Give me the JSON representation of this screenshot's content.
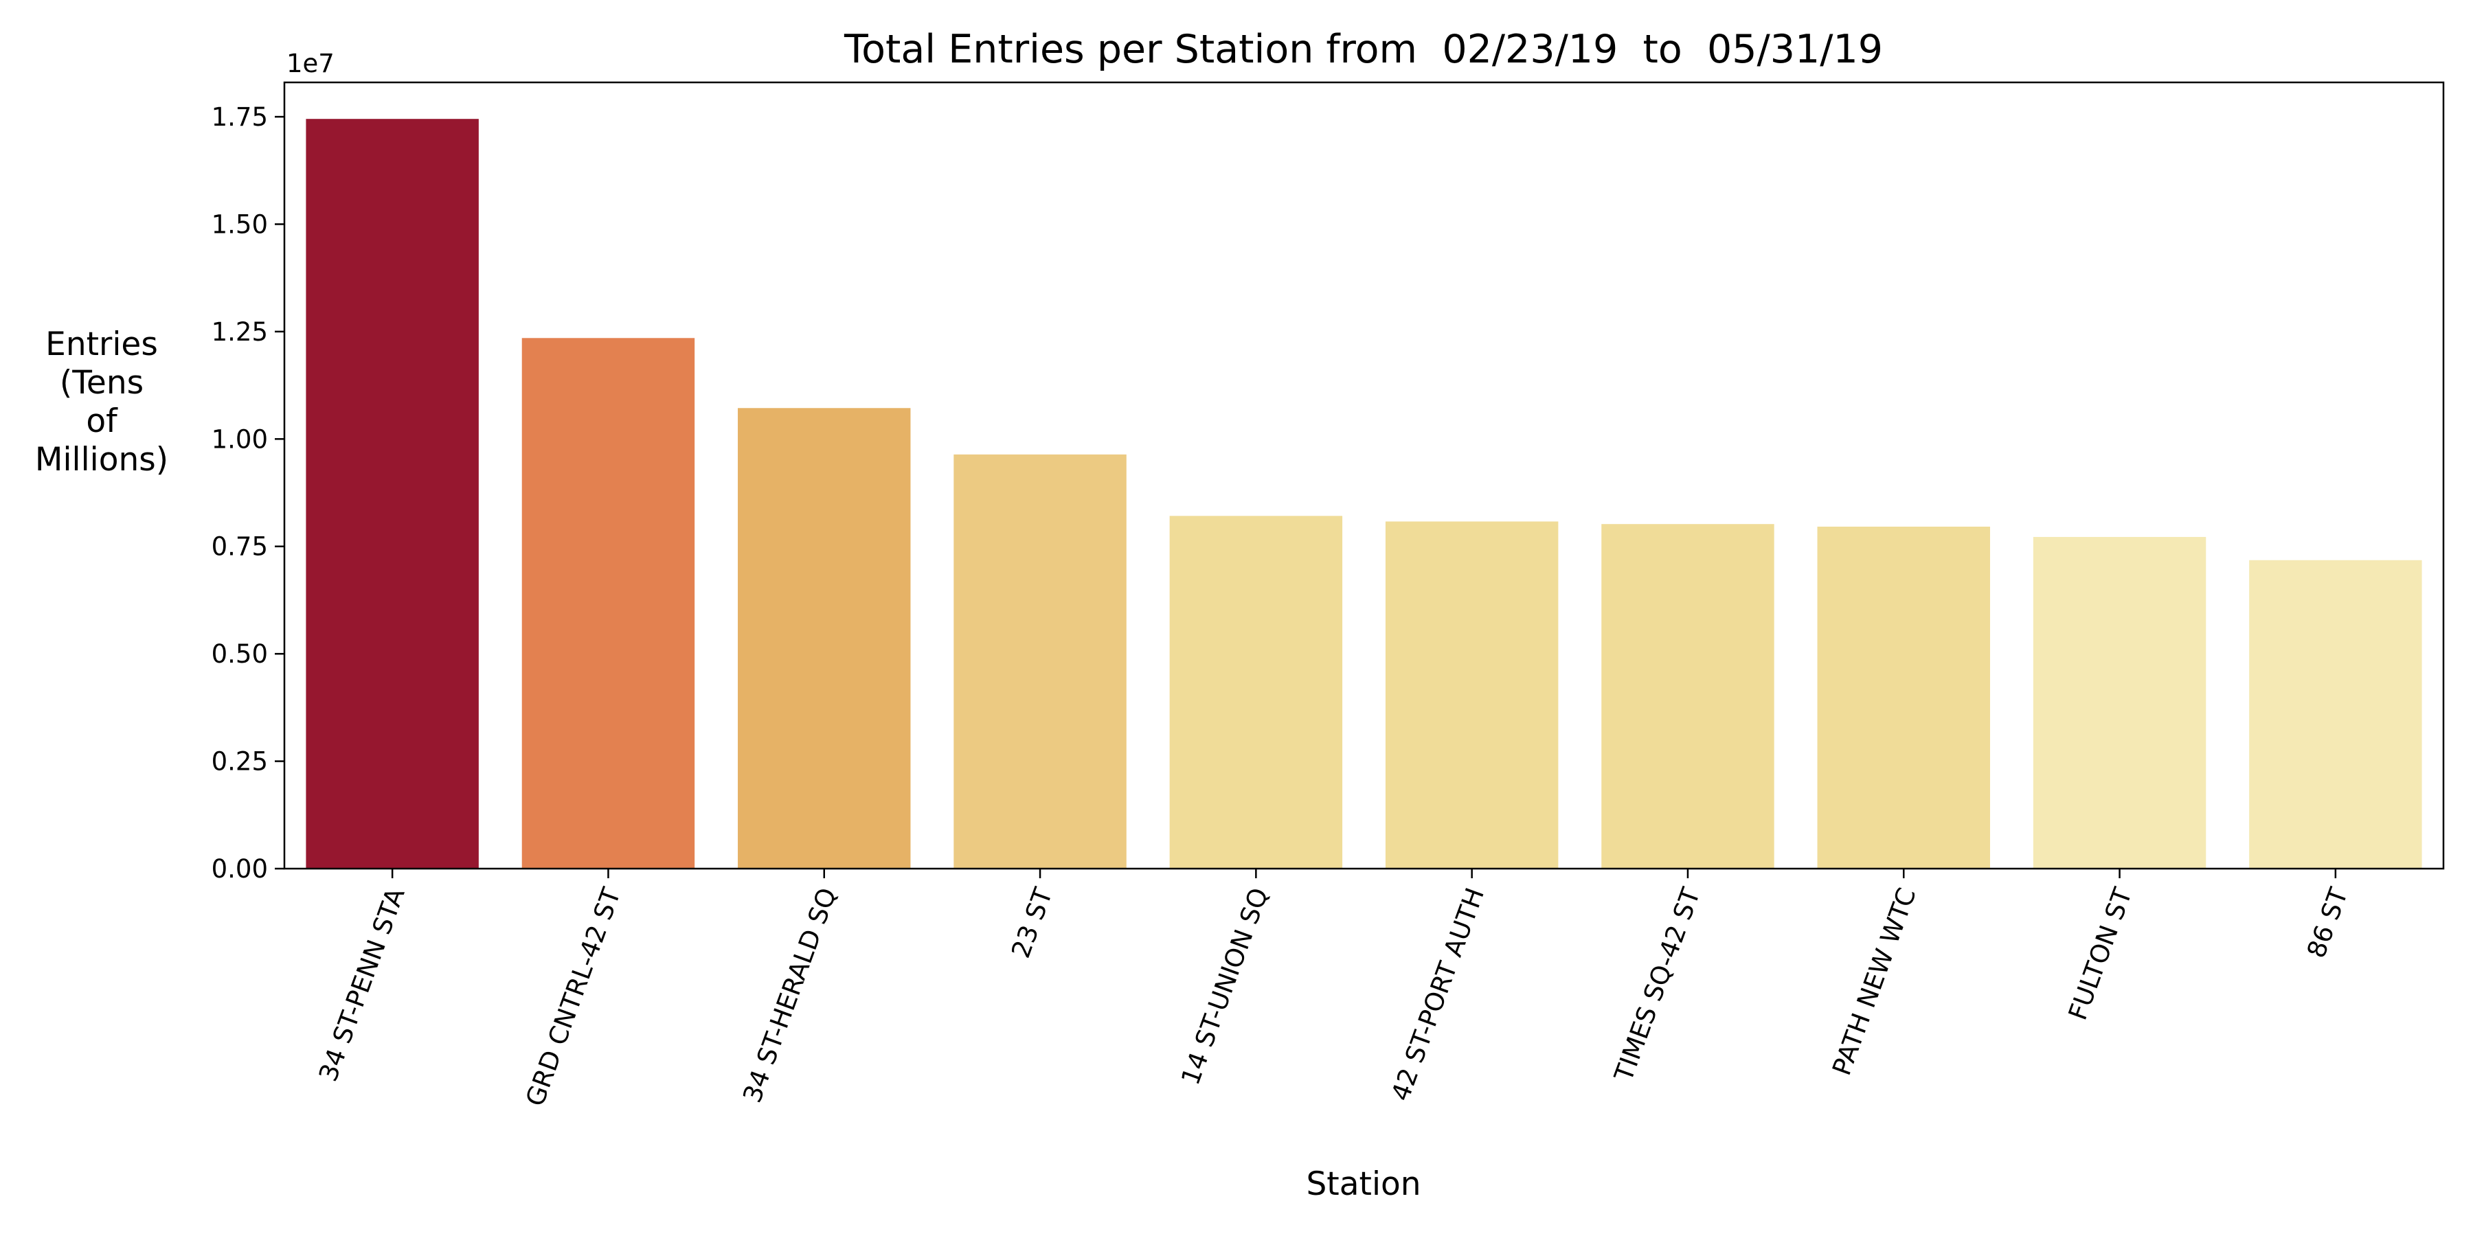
{
  "chart_data": {
    "type": "bar",
    "title": "Total Entries per Station from  02/23/19  to  05/31/19",
    "xlabel": "Station",
    "ylabel_lines": [
      "Entries",
      "(Tens",
      "of",
      "Millions)"
    ],
    "y_offset_text": "1e7",
    "y_scale": 10000000,
    "ylim": [
      0,
      1.83
    ],
    "yticks": [
      0.0,
      0.25,
      0.5,
      0.75,
      1.0,
      1.25,
      1.5,
      1.75
    ],
    "ytick_labels": [
      "0.00",
      "0.25",
      "0.50",
      "0.75",
      "1.00",
      "1.25",
      "1.50",
      "1.75"
    ],
    "grid": false,
    "legend": "none",
    "categories": [
      "34 ST-PENN STA",
      "GRD CNTRL-42 ST",
      "34 ST-HERALD SQ",
      "23 ST",
      "14 ST-UNION SQ",
      "42 ST-PORT AUTH",
      "TIMES SQ-42 ST",
      "PATH NEW WTC",
      "FULTON ST",
      "86 ST"
    ],
    "values": [
      17450000,
      12350000,
      10720000,
      9640000,
      8210000,
      8080000,
      8020000,
      7960000,
      7720000,
      7180000
    ],
    "colors": [
      "#96172f",
      "#e38150",
      "#e6b266",
      "#ecca82",
      "#f0dc98",
      "#f0dc98",
      "#f0dc98",
      "#f0dc98",
      "#f5e9b4",
      "#f5e9b4"
    ]
  }
}
